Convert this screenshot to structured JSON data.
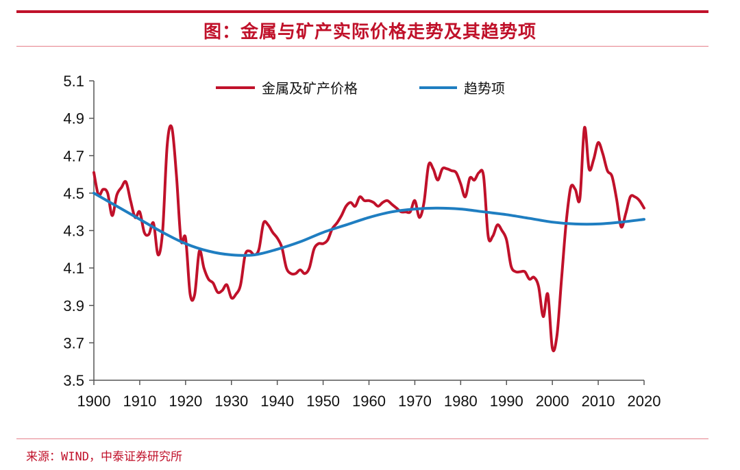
{
  "header": {
    "title": "图：金属与矿产实际价格走势及其趋势项"
  },
  "footer": {
    "source": "来源：WIND，中泰证券研究所"
  },
  "colors": {
    "accent": "#c0112a",
    "series_price": "#c0112a",
    "series_trend": "#1f7ec1"
  },
  "chart_data": {
    "type": "line",
    "title": "",
    "xlabel": "",
    "ylabel": "",
    "xlim": [
      1900,
      2020
    ],
    "ylim": [
      3.5,
      5.1
    ],
    "x_ticks": [
      1900,
      1910,
      1920,
      1930,
      1940,
      1950,
      1960,
      1970,
      1980,
      1990,
      2000,
      2010,
      2020
    ],
    "y_ticks": [
      "3.5",
      "3.7",
      "3.9",
      "4.1",
      "4.3",
      "4.5",
      "4.7",
      "4.9",
      "5.1"
    ],
    "grid": false,
    "legend_position": "top-center",
    "series": [
      {
        "name": "金属及矿产价格",
        "x": [
          1900,
          1901,
          1902,
          1903,
          1904,
          1905,
          1906,
          1907,
          1908,
          1909,
          1910,
          1911,
          1912,
          1913,
          1914,
          1915,
          1916,
          1917,
          1918,
          1919,
          1920,
          1921,
          1922,
          1923,
          1924,
          1925,
          1926,
          1927,
          1928,
          1929,
          1930,
          1931,
          1932,
          1933,
          1934,
          1935,
          1936,
          1937,
          1938,
          1939,
          1940,
          1941,
          1942,
          1943,
          1944,
          1945,
          1946,
          1947,
          1948,
          1949,
          1950,
          1951,
          1952,
          1953,
          1954,
          1955,
          1956,
          1957,
          1958,
          1959,
          1960,
          1961,
          1962,
          1963,
          1964,
          1965,
          1966,
          1967,
          1968,
          1969,
          1970,
          1971,
          1972,
          1973,
          1974,
          1975,
          1976,
          1977,
          1978,
          1979,
          1980,
          1981,
          1982,
          1983,
          1984,
          1985,
          1986,
          1987,
          1988,
          1989,
          1990,
          1991,
          1992,
          1993,
          1994,
          1995,
          1996,
          1997,
          1998,
          1999,
          2000,
          2001,
          2002,
          2003,
          2004,
          2005,
          2006,
          2007,
          2008,
          2009,
          2010,
          2011,
          2012,
          2013,
          2014,
          2015,
          2016,
          2017,
          2018,
          2019,
          2020
        ],
        "values": [
          4.61,
          4.49,
          4.52,
          4.5,
          4.38,
          4.49,
          4.53,
          4.56,
          4.46,
          4.37,
          4.4,
          4.29,
          4.28,
          4.34,
          4.17,
          4.3,
          4.76,
          4.85,
          4.6,
          4.25,
          4.26,
          3.96,
          3.96,
          4.19,
          4.1,
          4.04,
          4.02,
          3.97,
          3.98,
          4.01,
          3.94,
          3.96,
          4.01,
          4.17,
          4.19,
          4.17,
          4.2,
          4.34,
          4.33,
          4.29,
          4.26,
          4.21,
          4.1,
          4.07,
          4.07,
          4.09,
          4.07,
          4.1,
          4.2,
          4.23,
          4.23,
          4.25,
          4.31,
          4.34,
          4.38,
          4.43,
          4.45,
          4.43,
          4.48,
          4.46,
          4.46,
          4.45,
          4.43,
          4.45,
          4.46,
          4.44,
          4.42,
          4.4,
          4.4,
          4.4,
          4.46,
          4.37,
          4.45,
          4.65,
          4.63,
          4.57,
          4.63,
          4.63,
          4.62,
          4.61,
          4.55,
          4.48,
          4.58,
          4.57,
          4.61,
          4.59,
          4.27,
          4.27,
          4.33,
          4.3,
          4.25,
          4.11,
          4.08,
          4.08,
          4.08,
          4.04,
          4.05,
          4.0,
          3.84,
          3.96,
          3.67,
          3.74,
          4.04,
          4.34,
          4.53,
          4.52,
          4.47,
          4.85,
          4.63,
          4.68,
          4.77,
          4.71,
          4.62,
          4.59,
          4.47,
          4.32,
          4.39,
          4.48,
          4.48,
          4.46,
          4.42
        ]
      },
      {
        "name": "趋势项",
        "x": [
          1900,
          1905,
          1910,
          1915,
          1920,
          1925,
          1930,
          1935,
          1940,
          1945,
          1950,
          1955,
          1960,
          1965,
          1970,
          1975,
          1980,
          1985,
          1990,
          1995,
          2000,
          2005,
          2010,
          2015,
          2020
        ],
        "values": [
          4.5,
          4.43,
          4.36,
          4.29,
          4.23,
          4.19,
          4.17,
          4.17,
          4.2,
          4.24,
          4.29,
          4.33,
          4.37,
          4.4,
          4.415,
          4.42,
          4.415,
          4.4,
          4.385,
          4.365,
          4.345,
          4.335,
          4.335,
          4.345,
          4.36
        ]
      }
    ]
  }
}
